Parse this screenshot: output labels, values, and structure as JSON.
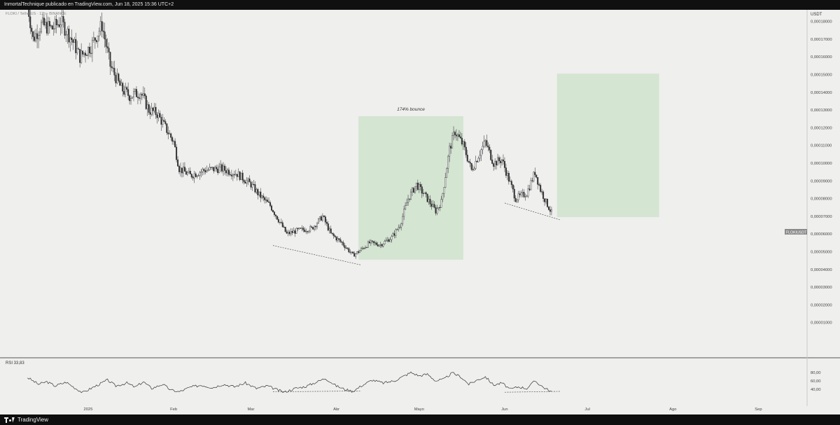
{
  "header": {
    "title": "InmortalTechnique publicado en TradingView.com, Jun 18, 2025 15:36 UTC+2"
  },
  "footer": {
    "brand": "TradingView"
  },
  "chart": {
    "pair_info": "FLOKI / TetherUS · 12h · BINANCE",
    "currency": "USDT",
    "price_tag": "FLOKIUSDT",
    "bounce_label": "174% bounce",
    "rsi_label": "RSI  33,83",
    "grid_visible": false
  },
  "chart_data": [
    {
      "type": "candlestick",
      "title": "FLOKI / TetherUS · 12h · BINANCE",
      "y_unit": "USDT",
      "ylim": [
        1e-07,
        0.0001915
      ],
      "y_ticks": [
        {
          "value": 0.00019,
          "label": "0,00019000"
        },
        {
          "value": 0.00018,
          "label": "0,00018000"
        },
        {
          "value": 0.00017,
          "label": "0,00017000"
        },
        {
          "value": 0.00016,
          "label": "0,00016000"
        },
        {
          "value": 0.00015,
          "label": "0,00015000"
        },
        {
          "value": 0.00014,
          "label": "0,00014000"
        },
        {
          "value": 0.00013,
          "label": "0,00013000"
        },
        {
          "value": 0.00012,
          "label": "0,00012000"
        },
        {
          "value": 0.00011,
          "label": "0,00011000"
        },
        {
          "value": 0.0001,
          "label": "0,00010000"
        },
        {
          "value": 9e-05,
          "label": "0,00009000"
        },
        {
          "value": 8e-05,
          "label": "0,00008000"
        },
        {
          "value": 7e-05,
          "label": "0,00007000"
        },
        {
          "value": 6e-05,
          "label": "0,00006000"
        },
        {
          "value": 5e-05,
          "label": "0,00005000"
        },
        {
          "value": 4e-05,
          "label": "0,00004000"
        },
        {
          "value": 3e-05,
          "label": "0,00003000"
        },
        {
          "value": 2e-05,
          "label": "0,00002000"
        },
        {
          "value": 1e-05,
          "label": "0,00001000"
        }
      ],
      "x_ticks": [
        {
          "label": "2025",
          "date": "2025-01-01"
        },
        {
          "label": "Feb",
          "date": "2025-02-01"
        },
        {
          "label": "Mar",
          "date": "2025-03-01"
        },
        {
          "label": "Abr",
          "date": "2025-04-01"
        },
        {
          "label": "Mayo",
          "date": "2025-05-01"
        },
        {
          "label": "Jun",
          "date": "2025-06-01"
        },
        {
          "label": "Jul",
          "date": "2025-07-01"
        },
        {
          "label": "Ago",
          "date": "2025-08-01"
        },
        {
          "label": "Sep",
          "date": "2025-09-01"
        }
      ],
      "price_path": [
        {
          "date": "2024-12-10",
          "price": 0.00019
        },
        {
          "date": "2024-12-12",
          "price": 0.00017
        },
        {
          "date": "2024-12-15",
          "price": 0.000178
        },
        {
          "date": "2024-12-19",
          "price": 0.000176
        },
        {
          "date": "2024-12-22",
          "price": 0.00018
        },
        {
          "date": "2024-12-26",
          "price": 0.00017
        },
        {
          "date": "2024-12-29",
          "price": 0.00016
        },
        {
          "date": "2025-01-02",
          "price": 0.000166
        },
        {
          "date": "2025-01-06",
          "price": 0.000178
        },
        {
          "date": "2025-01-09",
          "price": 0.000155
        },
        {
          "date": "2025-01-13",
          "price": 0.000142
        },
        {
          "date": "2025-01-16",
          "price": 0.000138
        },
        {
          "date": "2025-01-20",
          "price": 0.00014
        },
        {
          "date": "2025-01-23",
          "price": 0.00013
        },
        {
          "date": "2025-01-26",
          "price": 0.000128
        },
        {
          "date": "2025-01-29",
          "price": 0.00012
        },
        {
          "date": "2025-02-01",
          "price": 0.000112
        },
        {
          "date": "2025-02-03",
          "price": 9.7e-05
        },
        {
          "date": "2025-02-07",
          "price": 9.3e-05
        },
        {
          "date": "2025-02-12",
          "price": 9.6e-05
        },
        {
          "date": "2025-02-18",
          "price": 9.7e-05
        },
        {
          "date": "2025-02-24",
          "price": 9.4e-05
        },
        {
          "date": "2025-03-01",
          "price": 8.8e-05
        },
        {
          "date": "2025-03-04",
          "price": 8.2e-05
        },
        {
          "date": "2025-03-08",
          "price": 7.6e-05
        },
        {
          "date": "2025-03-11",
          "price": 6.8e-05
        },
        {
          "date": "2025-03-14",
          "price": 6e-05
        },
        {
          "date": "2025-03-18",
          "price": 6.2e-05
        },
        {
          "date": "2025-03-23",
          "price": 6.3e-05
        },
        {
          "date": "2025-03-27",
          "price": 7e-05
        },
        {
          "date": "2025-03-30",
          "price": 6e-05
        },
        {
          "date": "2025-04-03",
          "price": 5.5e-05
        },
        {
          "date": "2025-04-07",
          "price": 4.8e-05
        },
        {
          "date": "2025-04-09",
          "price": 5e-05
        },
        {
          "date": "2025-04-13",
          "price": 5.5e-05
        },
        {
          "date": "2025-04-17",
          "price": 5.4e-05
        },
        {
          "date": "2025-04-21",
          "price": 5.8e-05
        },
        {
          "date": "2025-04-24",
          "price": 6.5e-05
        },
        {
          "date": "2025-04-27",
          "price": 8e-05
        },
        {
          "date": "2025-04-30",
          "price": 8.8e-05
        },
        {
          "date": "2025-05-03",
          "price": 8.2e-05
        },
        {
          "date": "2025-05-07",
          "price": 7.3e-05
        },
        {
          "date": "2025-05-09",
          "price": 7.8e-05
        },
        {
          "date": "2025-05-12",
          "price": 0.000108
        },
        {
          "date": "2025-05-14",
          "price": 0.000118
        },
        {
          "date": "2025-05-17",
          "price": 0.00011
        },
        {
          "date": "2025-05-20",
          "price": 9.6e-05
        },
        {
          "date": "2025-05-23",
          "price": 0.000106
        },
        {
          "date": "2025-05-25",
          "price": 0.000112
        },
        {
          "date": "2025-05-28",
          "price": 0.0001
        },
        {
          "date": "2025-05-31",
          "price": 0.000102
        },
        {
          "date": "2025-06-02",
          "price": 9.3e-05
        },
        {
          "date": "2025-06-05",
          "price": 8e-05
        },
        {
          "date": "2025-06-09",
          "price": 8.3e-05
        },
        {
          "date": "2025-06-12",
          "price": 9.5e-05
        },
        {
          "date": "2025-06-14",
          "price": 8.5e-05
        },
        {
          "date": "2025-06-16",
          "price": 7.8e-05
        },
        {
          "date": "2025-06-18",
          "price": 7.2e-05
        }
      ],
      "current_price": 7.2e-05,
      "annotations": [
        {
          "type": "rectangle",
          "label": "174% bounce",
          "x0": "2025-04-09",
          "x1": "2025-05-17",
          "y0": 4.55e-05,
          "y1": 0.0001265,
          "color": "#cfe3cc"
        },
        {
          "type": "rectangle",
          "label": "",
          "x0": "2025-06-20",
          "x1": "2025-07-27",
          "y0": 6.95e-05,
          "y1": 0.0001505,
          "color": "#cfe3cc"
        },
        {
          "type": "dashed-trendline",
          "x0": "2025-03-09",
          "y0": 5.35e-05,
          "x1": "2025-04-10",
          "y1": 4.25e-05
        },
        {
          "type": "dashed-trendline",
          "x0": "2025-06-01",
          "y0": 7.75e-05,
          "x1": "2025-06-21",
          "y1": 6.8e-05
        }
      ]
    },
    {
      "type": "line",
      "title": "RSI  33,83",
      "current_value": 33.83,
      "ylim": [
        27,
        85
      ],
      "y_ticks": [
        {
          "value": 80,
          "label": "80,00"
        },
        {
          "value": 60,
          "label": "60,00"
        },
        {
          "value": 40,
          "label": "40,00"
        }
      ],
      "series": [
        {
          "values": [
            {
              "date": "2024-12-10",
              "value": 68
            },
            {
              "date": "2024-12-14",
              "value": 52
            },
            {
              "date": "2024-12-17",
              "value": 58
            },
            {
              "date": "2024-12-20",
              "value": 48
            },
            {
              "date": "2024-12-24",
              "value": 57
            },
            {
              "date": "2024-12-27",
              "value": 44
            },
            {
              "date": "2024-12-30",
              "value": 32
            },
            {
              "date": "2025-01-02",
              "value": 42
            },
            {
              "date": "2025-01-05",
              "value": 52
            },
            {
              "date": "2025-01-08",
              "value": 62
            },
            {
              "date": "2025-01-11",
              "value": 48
            },
            {
              "date": "2025-01-15",
              "value": 55
            },
            {
              "date": "2025-01-18",
              "value": 45
            },
            {
              "date": "2025-01-21",
              "value": 58
            },
            {
              "date": "2025-01-24",
              "value": 42
            },
            {
              "date": "2025-01-28",
              "value": 52
            },
            {
              "date": "2025-01-31",
              "value": 38
            },
            {
              "date": "2025-02-03",
              "value": 34
            },
            {
              "date": "2025-02-07",
              "value": 45
            },
            {
              "date": "2025-02-11",
              "value": 50
            },
            {
              "date": "2025-02-15",
              "value": 44
            },
            {
              "date": "2025-02-19",
              "value": 52
            },
            {
              "date": "2025-02-23",
              "value": 46
            },
            {
              "date": "2025-02-27",
              "value": 55
            },
            {
              "date": "2025-03-03",
              "value": 42
            },
            {
              "date": "2025-03-07",
              "value": 48
            },
            {
              "date": "2025-03-10",
              "value": 40
            },
            {
              "date": "2025-03-13",
              "value": 33
            },
            {
              "date": "2025-03-17",
              "value": 42
            },
            {
              "date": "2025-03-21",
              "value": 47
            },
            {
              "date": "2025-03-25",
              "value": 58
            },
            {
              "date": "2025-03-28",
              "value": 66
            },
            {
              "date": "2025-04-01",
              "value": 48
            },
            {
              "date": "2025-04-04",
              "value": 40
            },
            {
              "date": "2025-04-07",
              "value": 35
            },
            {
              "date": "2025-04-10",
              "value": 48
            },
            {
              "date": "2025-04-14",
              "value": 62
            },
            {
              "date": "2025-04-18",
              "value": 55
            },
            {
              "date": "2025-04-22",
              "value": 60
            },
            {
              "date": "2025-04-25",
              "value": 70
            },
            {
              "date": "2025-04-28",
              "value": 80
            },
            {
              "date": "2025-05-01",
              "value": 72
            },
            {
              "date": "2025-05-04",
              "value": 76
            },
            {
              "date": "2025-05-07",
              "value": 60
            },
            {
              "date": "2025-05-10",
              "value": 64
            },
            {
              "date": "2025-05-13",
              "value": 79
            },
            {
              "date": "2025-05-16",
              "value": 70
            },
            {
              "date": "2025-05-19",
              "value": 52
            },
            {
              "date": "2025-05-22",
              "value": 62
            },
            {
              "date": "2025-05-25",
              "value": 70
            },
            {
              "date": "2025-05-28",
              "value": 50
            },
            {
              "date": "2025-05-31",
              "value": 55
            },
            {
              "date": "2025-06-03",
              "value": 40
            },
            {
              "date": "2025-06-06",
              "value": 46
            },
            {
              "date": "2025-06-09",
              "value": 42
            },
            {
              "date": "2025-06-12",
              "value": 60
            },
            {
              "date": "2025-06-15",
              "value": 45
            },
            {
              "date": "2025-06-18",
              "value": 34
            }
          ]
        }
      ],
      "annotations": [
        {
          "type": "dashed-trendline",
          "x0": "2025-03-09",
          "y0": 34,
          "x1": "2025-04-10",
          "y1": 36
        },
        {
          "type": "dashed-trendline",
          "x0": "2025-06-01",
          "y0": 33,
          "x1": "2025-06-21",
          "y1": 35
        }
      ]
    }
  ]
}
